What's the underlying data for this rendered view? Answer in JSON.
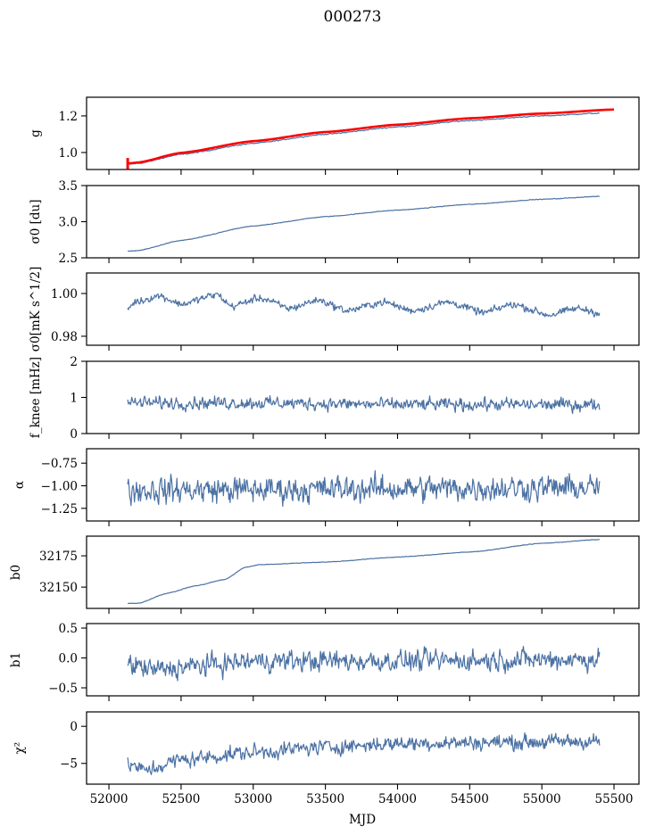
{
  "chart_data": {
    "type": "line",
    "title": "000273",
    "xlabel": "MJD",
    "xlim": [
      51845,
      55673
    ],
    "xticks": [
      52000,
      52500,
      53000,
      53500,
      54000,
      54500,
      55000,
      55500
    ],
    "xtick_labels": [
      "52000",
      "52500",
      "53000",
      "53500",
      "54000",
      "54500",
      "55000",
      "55500"
    ],
    "data_x_range": [
      52130,
      55400
    ],
    "series_color": "#4c72a4",
    "overlay_color": "#ff0000",
    "panels": [
      {
        "id": "g",
        "ylabel": "g",
        "ylabel_math": "g",
        "ylim": [
          0.907,
          1.302
        ],
        "yticks": [
          1.0,
          1.2
        ],
        "ytick_labels": [
          "1.0",
          "1.2"
        ],
        "series": [
          {
            "name": "g",
            "color": "#4c72a4",
            "shape": "log-growth",
            "x_end": 55400,
            "points": [
              [
                52130,
                0.935
              ],
              [
                52200,
                0.94
              ],
              [
                52500,
                0.99
              ],
              [
                53000,
                1.05
              ],
              [
                53500,
                1.1
              ],
              [
                54000,
                1.14
              ],
              [
                54500,
                1.175
              ],
              [
                55000,
                1.2
              ],
              [
                55400,
                1.215
              ]
            ],
            "noise": 0.002
          },
          {
            "name": "g-fit",
            "color": "#ff0000",
            "x_end": 55500,
            "points": [
              [
                52130,
                0.94
              ],
              [
                52200,
                0.945
              ],
              [
                52500,
                0.998
              ],
              [
                53000,
                1.062
              ],
              [
                53500,
                1.112
              ],
              [
                54000,
                1.152
              ],
              [
                54500,
                1.187
              ],
              [
                55000,
                1.213
              ],
              [
                55500,
                1.235
              ]
            ],
            "noise": 0.0,
            "errorbar_at_start": [
              52130,
              0.94,
              0.03
            ]
          }
        ]
      },
      {
        "id": "sigma0-du",
        "ylabel": "σ0 [du]",
        "ylim": [
          2.5,
          3.5
        ],
        "yticks": [
          2.5,
          3.0,
          3.5
        ],
        "ytick_labels": [
          "2.5",
          "3.0",
          "3.5"
        ],
        "series": [
          {
            "name": "sigma0_du",
            "color": "#4c72a4",
            "points": [
              [
                52130,
                2.59
              ],
              [
                52200,
                2.6
              ],
              [
                52500,
                2.74
              ],
              [
                53000,
                2.94
              ],
              [
                53500,
                3.07
              ],
              [
                54000,
                3.16
              ],
              [
                54500,
                3.24
              ],
              [
                55000,
                3.31
              ],
              [
                55400,
                3.35
              ]
            ],
            "noise": 0.003
          }
        ]
      },
      {
        "id": "sigma0-mk",
        "ylabel": "σ0[mK s^1/2]",
        "ylim": [
          0.9758,
          1.0096
        ],
        "yticks": [
          0.98,
          1.0
        ],
        "ytick_labels": [
          "0.98",
          "1.00"
        ],
        "series": [
          {
            "name": "sigma0_mk",
            "color": "#4c72a4",
            "points": [
              [
                52130,
                0.993
              ],
              [
                52180,
                0.996
              ],
              [
                52350,
                0.999
              ],
              [
                52500,
                0.995
              ],
              [
                52750,
                0.9995
              ],
              [
                52850,
                0.994
              ],
              [
                53050,
                0.998
              ],
              [
                53250,
                0.993
              ],
              [
                53450,
                0.997
              ],
              [
                53650,
                0.992
              ],
              [
                53900,
                0.996
              ],
              [
                54100,
                0.992
              ],
              [
                54350,
                0.996
              ],
              [
                54600,
                0.991
              ],
              [
                54800,
                0.995
              ],
              [
                55050,
                0.99
              ],
              [
                55250,
                0.993
              ],
              [
                55400,
                0.991
              ]
            ],
            "noise": 0.0012
          }
        ]
      },
      {
        "id": "fknee",
        "ylabel": "f_knee [mHz]",
        "ylim": [
          0,
          2
        ],
        "yticks": [
          0,
          1,
          2
        ],
        "ytick_labels": [
          "0",
          "1",
          "2"
        ],
        "series": [
          {
            "name": "fknee",
            "color": "#4c72a4",
            "points": [
              [
                52130,
                0.85
              ],
              [
                53000,
                0.85
              ],
              [
                54000,
                0.8
              ],
              [
                55400,
                0.8
              ]
            ],
            "noise": 0.12
          }
        ]
      },
      {
        "id": "alpha",
        "ylabel": "α",
        "ylim": [
          -1.39,
          -0.59
        ],
        "yticks": [
          -1.25,
          -1.0,
          -0.75
        ],
        "ytick_labels": [
          "−1.25",
          "−1.00",
          "−0.75"
        ],
        "series": [
          {
            "name": "alpha",
            "color": "#4c72a4",
            "points": [
              [
                52130,
                -1.05
              ],
              [
                55400,
                -1.02
              ]
            ],
            "noise": 0.1
          }
        ]
      },
      {
        "id": "b0",
        "ylabel": "b0",
        "ylim": [
          32133,
          32190.7
        ],
        "yticks": [
          32150,
          32175
        ],
        "ytick_labels": [
          "32150",
          "32175"
        ],
        "series": [
          {
            "name": "b0",
            "color": "#4c72a4",
            "points": [
              [
                52130,
                32137
              ],
              [
                52200,
                32137
              ],
              [
                52400,
                32145
              ],
              [
                52600,
                32151
              ],
              [
                52800,
                32156
              ],
              [
                52950,
                32166
              ],
              [
                53050,
                32168
              ],
              [
                53500,
                32170
              ],
              [
                54000,
                32174
              ],
              [
                54500,
                32178
              ],
              [
                55000,
                32185
              ],
              [
                55400,
                32188
              ]
            ],
            "noise": 0.15
          }
        ]
      },
      {
        "id": "b1",
        "ylabel": "b1",
        "ylim": [
          -0.634,
          0.575
        ],
        "yticks": [
          -0.5,
          0.0,
          0.5
        ],
        "ytick_labels": [
          "−0.5",
          "0.0",
          "0.5"
        ],
        "series": [
          {
            "name": "b1",
            "color": "#4c72a4",
            "points": [
              [
                52130,
                -0.1
              ],
              [
                52300,
                -0.2
              ],
              [
                52700,
                -0.12
              ],
              [
                53000,
                -0.05
              ],
              [
                54000,
                -0.05
              ],
              [
                55400,
                -0.02
              ]
            ],
            "noise": 0.12
          }
        ]
      },
      {
        "id": "chi2",
        "ylabel": "χ²",
        "ylim": [
          -7.8,
          1.95
        ],
        "yticks": [
          -5,
          0
        ],
        "ytick_labels": [
          "−5",
          "0"
        ],
        "series": [
          {
            "name": "chi2",
            "color": "#4c72a4",
            "points": [
              [
                52130,
                -5.0
              ],
              [
                52250,
                -6.0
              ],
              [
                52500,
                -4.5
              ],
              [
                53000,
                -3.5
              ],
              [
                53500,
                -2.8
              ],
              [
                54000,
                -2.3
              ],
              [
                54500,
                -2.2
              ],
              [
                55000,
                -2.1
              ],
              [
                55400,
                -2.0
              ]
            ],
            "noise": 0.7
          }
        ]
      }
    ]
  }
}
